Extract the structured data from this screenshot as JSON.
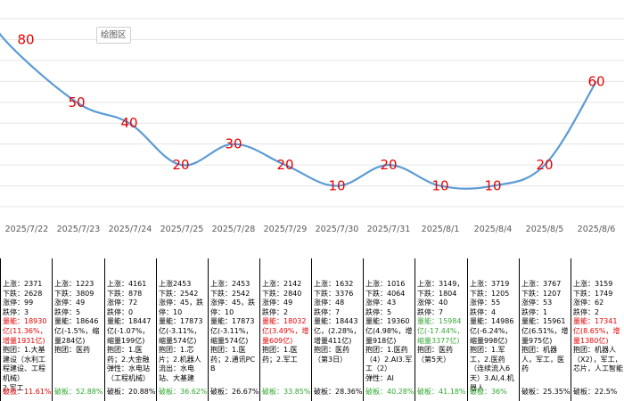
{
  "tooltip": {
    "label": "绘图区"
  },
  "chart_data": {
    "type": "line",
    "categories": [
      "2025/7/22",
      "2025/7/23",
      "2025/7/24",
      "2025/7/25",
      "2025/7/28",
      "2025/7/29",
      "2025/7/30",
      "2025/7/31",
      "2025/8/1",
      "2025/8/4",
      "2025/8/5",
      "2025/8/6"
    ],
    "series": [
      {
        "values": [
          80,
          50,
          40,
          20,
          30,
          20,
          10,
          20,
          10,
          10,
          20,
          60
        ]
      }
    ],
    "ylim": [
      0,
      90
    ],
    "grid": true,
    "data_labels": true,
    "colors": {
      "line": "#5b9bd5",
      "labels": "#e60000"
    }
  },
  "columns": [
    {
      "up": "上涨：2371",
      "down": "下跌：2628",
      "limit_up": "涨停：99",
      "limit_down": "跌停：3",
      "volume": "量能：18930亿(11.36%，增量1931亿)",
      "volume_color": "red",
      "lines": [
        "抱团：1.大基建设（水利工程建设、工程机械）",
        "2.军工"
      ],
      "break_rate": "破板：11.61%",
      "break_color": "red"
    },
    {
      "up": "上涨：1223",
      "down": "下跌：3809",
      "limit_up": "涨停：49",
      "limit_down": "跌停：5",
      "volume": "量能：18646亿(-1.5%，缩量284亿)",
      "volume_color": "black",
      "lines": [
        "抱团：医药"
      ],
      "break_rate": "破板：52.88%",
      "break_color": "green"
    },
    {
      "up": "上涨：4161",
      "down": "下跌：878",
      "limit_up": "涨停：72",
      "limit_down": "跌停：0",
      "volume": "量能：18447亿(-1.07%，缩量199亿)",
      "volume_color": "black",
      "lines": [
        "抱团：1.医药；2.大金融",
        "弹性：水电站（工程机械）"
      ],
      "break_rate": "破板：20.88%",
      "break_color": "black"
    },
    {
      "up": "上涨2453",
      "down": "下跌：2542",
      "limit_up": "涨停：45，跌",
      "limit_down": "停：10",
      "volume": "量能：17873亿(-3.11%，缩量574亿)",
      "volume_color": "black",
      "lines": [
        "抱团：1.芯片；2.机器人",
        "流出：水电站、大基建"
      ],
      "break_rate": "破板：36.62%",
      "break_color": "green"
    },
    {
      "up": "上涨：2453",
      "down": "下跌：2542",
      "limit_up": "涨停：45，跌",
      "limit_down": "停：10",
      "volume": "量能：17873亿(-3.11%，缩量574亿)",
      "volume_color": "black",
      "lines": [
        "抱团：1.医药；2.通讯PCB"
      ],
      "break_rate": "破板：26.67%",
      "break_color": "black"
    },
    {
      "up": "上涨：2142",
      "down": "下跌：2840",
      "limit_up": "涨停：49",
      "limit_down": "跌停：2",
      "volume": "量能：18032亿(3.49%，增量609亿)",
      "volume_color": "red",
      "lines": [
        "抱团：1.医药；2.军工"
      ],
      "break_rate": "破板：33.85%",
      "break_color": "green"
    },
    {
      "up": "上涨：1632",
      "down": "下跌：3376",
      "limit_up": "涨停：48",
      "limit_down": "跌停：7",
      "volume": "量能：18443亿，(2.28%，增量411亿)",
      "volume_color": "black",
      "lines": [
        "抱团：医药（第3日）"
      ],
      "break_rate": "破板：28.36%",
      "break_color": "black"
    },
    {
      "up": "上涨：1016",
      "down": "下跌：4064",
      "limit_up": "涨停：43",
      "limit_down": "跌停：5",
      "volume": "量能：19360亿(4.98%，增量918亿)",
      "volume_color": "black",
      "lines": [
        "抱团：1.医药（4）2.AI3.军工（2）",
        "弹性：AI"
      ],
      "break_rate": "破板：40.28%",
      "break_color": "green"
    },
    {
      "up": "上涨：3149，",
      "down": "下跌：1804",
      "limit_up": "涨停：40",
      "limit_down": "跌停：7",
      "volume": "量能：15984亿(-17.44%，缩量3377亿)",
      "volume_color": "green",
      "lines": [
        "抱团：医药（第5天）"
      ],
      "break_rate": "破板：41.18%",
      "break_color": "green"
    },
    {
      "up": "上涨：3719",
      "down": "下跌：1205",
      "limit_up": "涨停：55",
      "limit_down": "跌停：4",
      "volume": "量能：14986亿(-6.24%，缩量998亿)",
      "volume_color": "black",
      "lines": [
        "抱团：1.军工，2.医药（连续流入6天）3.AI,4.机器人"
      ],
      "break_rate": "破板：36%",
      "break_color": "green"
    },
    {
      "up": "上涨：3767",
      "down": "下跌：1207",
      "limit_up": "涨停：53",
      "limit_down": "跌停：1",
      "volume": "量能：15961亿(6.51%，增量975亿)",
      "volume_color": "black",
      "lines": [
        "抱团：机器人，军工，医药"
      ],
      "break_rate": "破板：25.35%",
      "break_color": "black"
    },
    {
      "up": "上涨：3159",
      "down": "下跌：1749",
      "limit_up": "涨停：62",
      "limit_down": "跌停：2",
      "volume": "量能：17341亿(8.65%，增量1380亿)",
      "volume_color": "red",
      "lines": [
        "抱团：机器人（X2），军工，芯片，人工智能"
      ],
      "break_rate": "破板：22.5%",
      "break_color": "black"
    }
  ]
}
